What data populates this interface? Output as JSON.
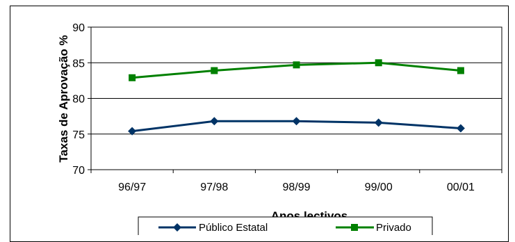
{
  "chart_data": {
    "type": "line",
    "categories": [
      "96/97",
      "97/98",
      "98/99",
      "99/00",
      "00/01"
    ],
    "series": [
      {
        "name": "Público Estatal",
        "values": [
          75.4,
          76.8,
          76.8,
          76.6,
          75.8
        ],
        "color": "#003366",
        "marker": "diamond"
      },
      {
        "name": "Privado",
        "values": [
          82.9,
          83.9,
          84.7,
          85.0,
          83.9
        ],
        "color": "#008000",
        "marker": "square"
      }
    ],
    "yticks": [
      70,
      75,
      80,
      85,
      90
    ],
    "ylim": [
      70,
      90
    ],
    "xlabel": "Anos lectivos",
    "ylabel": "Taxas de Aprovação %",
    "grid": true,
    "legend_position": "bottom"
  }
}
